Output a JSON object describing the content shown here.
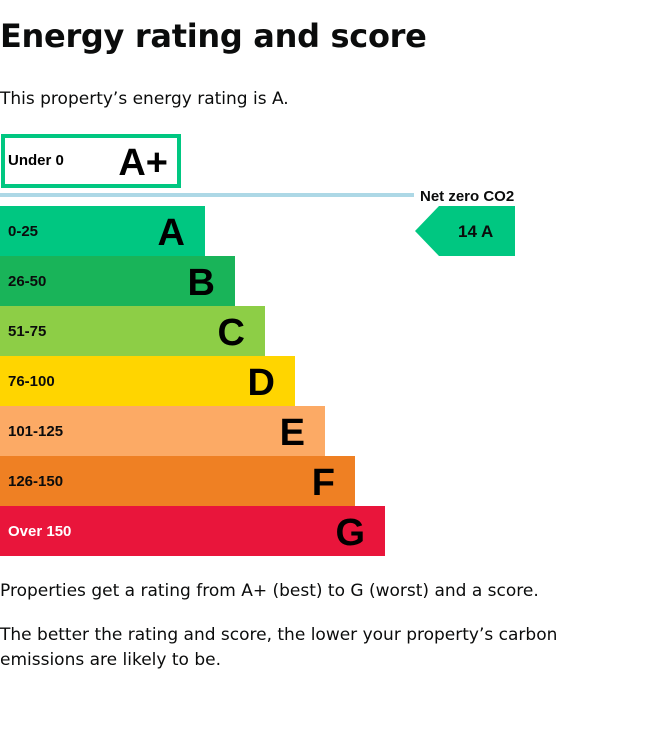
{
  "page": {
    "title": "Energy rating and score",
    "intro": "This property’s energy rating is A.",
    "footer_1": "Properties get a rating from A+ (best) to G (worst) and a score.",
    "footer_2": "The better the rating and score, the lower your property’s carbon emissions are likely to be."
  },
  "chart_data": {
    "type": "bar",
    "title": "",
    "categories": [
      "A+",
      "A",
      "B",
      "C",
      "D",
      "E",
      "F",
      "G"
    ],
    "bands": [
      {
        "letter": "A+",
        "range": "Under 0",
        "color": "#ffffff",
        "outline": "#00c781"
      },
      {
        "letter": "A",
        "range": "0-25",
        "color": "#00c781"
      },
      {
        "letter": "B",
        "range": "26-50",
        "color": "#19b459"
      },
      {
        "letter": "C",
        "range": "51-75",
        "color": "#8dce46"
      },
      {
        "letter": "D",
        "range": "76-100",
        "color": "#ffd500"
      },
      {
        "letter": "E",
        "range": "101-125",
        "color": "#fcaa65"
      },
      {
        "letter": "F",
        "range": "126-150",
        "color": "#ef8023"
      },
      {
        "letter": "G",
        "range": "Over 150",
        "color": "#e9153b"
      }
    ],
    "net_zero_label": "Net zero CO2",
    "net_zero_line_color": "#add8e6",
    "current": {
      "score": 14,
      "letter": "A",
      "label": "14  A",
      "color": "#00c781"
    }
  }
}
